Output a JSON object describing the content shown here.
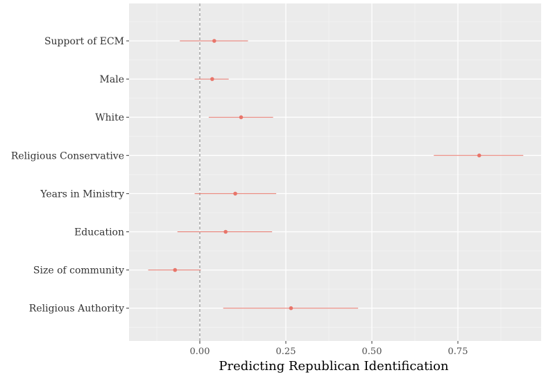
{
  "chart_data": {
    "type": "scatter",
    "subtype": "coefficient-plot",
    "title": "",
    "xlabel": "Predicting Republican Identification",
    "ylabel": "",
    "xlim": [
      -0.2,
      0.99
    ],
    "x_ticks": [
      0.0,
      0.25,
      0.5,
      0.75
    ],
    "x_tick_labels": [
      "0.00",
      "0.25",
      "0.50",
      "0.75"
    ],
    "reference_line": 0.0,
    "grid": true,
    "legend": "none",
    "colors": {
      "panel": "#ebebeb",
      "grid_major": "#ffffff",
      "grid_minor": "#f5f5f5",
      "point": "#e8756a",
      "reference_line": "#7f7f7f"
    },
    "categories": [
      "Support of ECM",
      "Male",
      "White",
      "Religious Conservative",
      "Years in Ministry",
      "Education",
      "Size of community",
      "Religious Authority"
    ],
    "estimates": [
      0.042,
      0.036,
      0.12,
      0.812,
      0.103,
      0.075,
      -0.072,
      0.265
    ],
    "lower": [
      -0.058,
      -0.015,
      0.026,
      0.68,
      -0.015,
      -0.065,
      -0.15,
      0.068
    ],
    "upper": [
      0.14,
      0.084,
      0.213,
      0.94,
      0.222,
      0.21,
      0.003,
      0.46
    ]
  }
}
